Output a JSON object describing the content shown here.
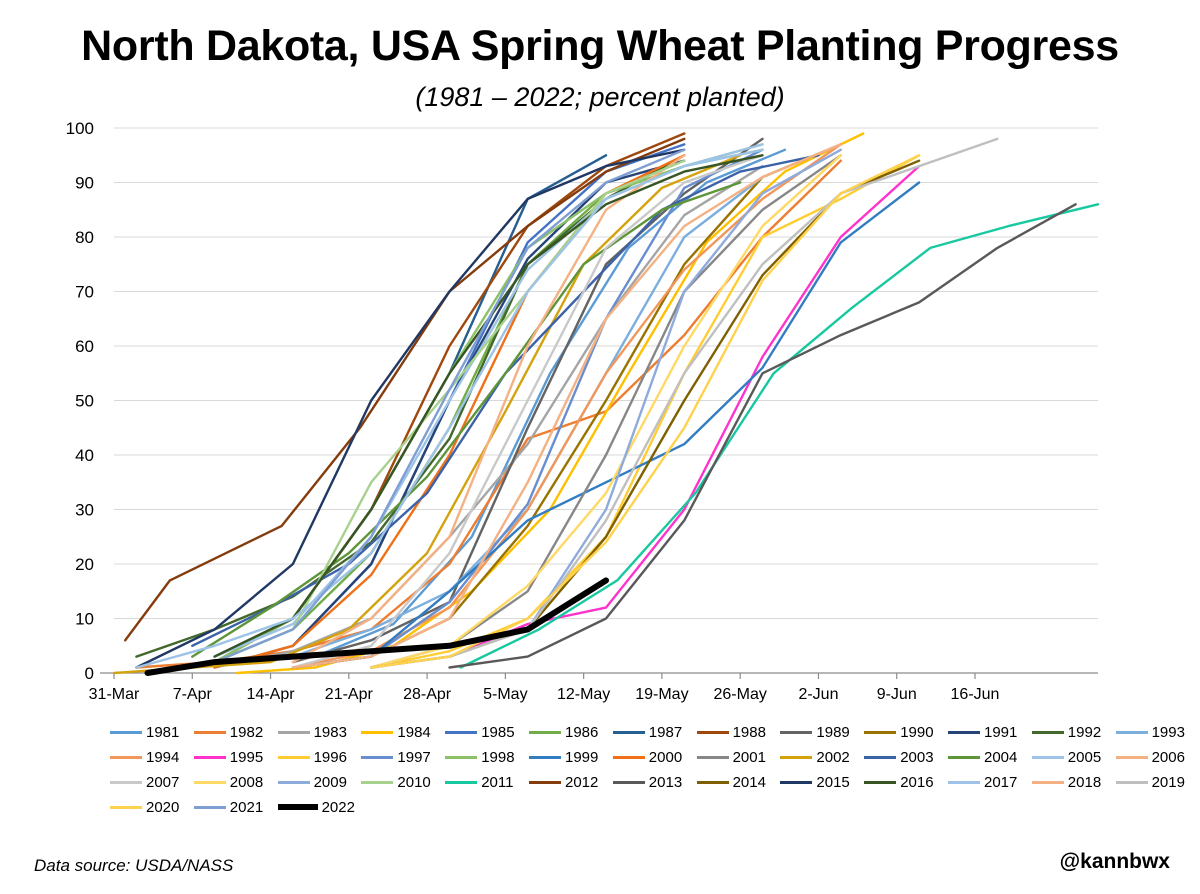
{
  "title": "North Dakota, USA Spring Wheat Planting Progress",
  "subtitle": "(1981 – 2022; percent planted)",
  "source": "Data source: USDA/NASS",
  "handle": "@kannbwx",
  "chart_data": {
    "type": "line",
    "x_tick_labels": [
      "31-Mar",
      "7-Apr",
      "14-Apr",
      "21-Apr",
      "28-Apr",
      "5-May",
      "12-May",
      "19-May",
      "26-May",
      "2-Jun",
      "9-Jun",
      "16-Jun"
    ],
    "x_unit": "day of year (31-Mar = 0)",
    "xlim": [
      0,
      88
    ],
    "ylim": [
      0,
      100
    ],
    "y_ticks": [
      0,
      10,
      20,
      30,
      40,
      50,
      60,
      70,
      80,
      90,
      100
    ],
    "grid": "horizontal",
    "legend_position": "bottom",
    "series": [
      {
        "name": "1981",
        "color": "#5b9bd5",
        "x": [
          18,
          25,
          32,
          39,
          46,
          53,
          60
        ],
        "y": [
          3,
          9,
          25,
          55,
          78,
          90,
          96
        ]
      },
      {
        "name": "1982",
        "color": "#ed7d31",
        "x": [
          2,
          9,
          16,
          23,
          30,
          37,
          44,
          51,
          58,
          65
        ],
        "y": [
          1,
          2,
          4,
          8,
          20,
          43,
          48,
          62,
          80,
          94
        ]
      },
      {
        "name": "1983",
        "color": "#a5a5a5",
        "x": [
          9,
          16,
          23,
          30,
          37,
          44,
          51,
          58
        ],
        "y": [
          1,
          4,
          10,
          25,
          42,
          65,
          84,
          93
        ]
      },
      {
        "name": "1984",
        "color": "#ffc000",
        "x": [
          11,
          18,
          25,
          32,
          39,
          46,
          53,
          60,
          67
        ],
        "y": [
          0,
          1,
          5,
          15,
          30,
          55,
          79,
          92,
          99
        ]
      },
      {
        "name": "1985",
        "color": "#4472c4",
        "x": [
          16,
          23,
          30,
          37,
          44,
          51
        ],
        "y": [
          5,
          20,
          50,
          79,
          92,
          97
        ]
      },
      {
        "name": "1986",
        "color": "#70ad47",
        "x": [
          9,
          16,
          23,
          30,
          37,
          44,
          51,
          58
        ],
        "y": [
          2,
          8,
          22,
          45,
          75,
          88,
          93,
          97
        ]
      },
      {
        "name": "1987",
        "color": "#255e91",
        "x": [
          9,
          16,
          23,
          30,
          37,
          44
        ],
        "y": [
          3,
          10,
          30,
          55,
          87,
          95
        ]
      },
      {
        "name": "1988",
        "color": "#9e480e",
        "x": [
          9,
          16,
          23,
          30,
          37,
          44,
          51
        ],
        "y": [
          2,
          10,
          30,
          60,
          82,
          93,
          99
        ]
      },
      {
        "name": "1989",
        "color": "#636363",
        "x": [
          16,
          23,
          30,
          37,
          44,
          51,
          58
        ],
        "y": [
          2,
          6,
          13,
          45,
          75,
          88,
          98
        ]
      },
      {
        "name": "1990",
        "color": "#997300",
        "x": [
          16,
          23,
          30,
          37,
          44,
          51,
          58,
          65
        ],
        "y": [
          1,
          3,
          10,
          27,
          50,
          75,
          91,
          97
        ]
      },
      {
        "name": "1991",
        "color": "#264478",
        "x": [
          9,
          16,
          23,
          30,
          37,
          44,
          51
        ],
        "y": [
          1,
          5,
          20,
          50,
          76,
          90,
          94
        ]
      },
      {
        "name": "1992",
        "color": "#43682b",
        "x": [
          2,
          9,
          16,
          23,
          30,
          37,
          44,
          51
        ],
        "y": [
          3,
          8,
          14,
          24,
          43,
          75,
          87,
          95
        ]
      },
      {
        "name": "1993",
        "color": "#7cafdd",
        "x": [
          16,
          23,
          30,
          37,
          44,
          51,
          58
        ],
        "y": [
          3,
          8,
          15,
          30,
          55,
          80,
          91
        ]
      },
      {
        "name": "1994",
        "color": "#f1975a",
        "x": [
          16,
          23,
          30,
          37,
          44,
          51,
          58,
          65
        ],
        "y": [
          1,
          4,
          12,
          30,
          55,
          74,
          87,
          97
        ]
      },
      {
        "name": "1995",
        "color": "#ff33cc",
        "x": [
          30,
          37,
          44,
          51,
          58,
          65,
          72
        ],
        "y": [
          3,
          9,
          12,
          30,
          58,
          80,
          93
        ]
      },
      {
        "name": "1996",
        "color": "#ffcd33",
        "x": [
          23,
          30,
          37,
          44,
          51,
          58,
          65,
          72
        ],
        "y": [
          1,
          4,
          10,
          25,
          55,
          80,
          87,
          95
        ]
      },
      {
        "name": "1997",
        "color": "#698ed0",
        "x": [
          16,
          23,
          30,
          37,
          44,
          51,
          58
        ],
        "y": [
          1,
          3,
          13,
          31,
          65,
          89,
          96
        ]
      },
      {
        "name": "1998",
        "color": "#8cc168",
        "x": [
          9,
          16,
          23,
          30,
          37,
          44,
          51,
          58
        ],
        "y": [
          2,
          10,
          30,
          55,
          78,
          88,
          93,
          96
        ]
      },
      {
        "name": "1999",
        "color": "#327dc2",
        "x": [
          16,
          23,
          30,
          37,
          44,
          51,
          58,
          65,
          72
        ],
        "y": [
          1,
          3,
          15,
          28,
          35,
          42,
          56,
          79,
          90
        ]
      },
      {
        "name": "2000",
        "color": "#f07018",
        "x": [
          9,
          16,
          23,
          30,
          37,
          44,
          51
        ],
        "y": [
          1,
          5,
          18,
          40,
          70,
          88,
          95
        ]
      },
      {
        "name": "2001",
        "color": "#878787",
        "x": [
          23,
          30,
          37,
          44,
          51,
          58,
          65
        ],
        "y": [
          1,
          5,
          15,
          40,
          70,
          85,
          95
        ]
      },
      {
        "name": "2002",
        "color": "#d4a20c",
        "x": [
          0,
          7,
          14,
          21,
          28,
          35,
          42,
          49,
          56
        ],
        "y": [
          0,
          1,
          2,
          8,
          22,
          48,
          75,
          89,
          95
        ]
      },
      {
        "name": "2003",
        "color": "#3c62a8",
        "x": [
          7,
          14,
          21,
          28,
          35,
          42,
          49,
          56,
          63
        ],
        "y": [
          5,
          12,
          20,
          33,
          55,
          70,
          85,
          92,
          95
        ]
      },
      {
        "name": "2004",
        "color": "#5e9538",
        "x": [
          7,
          14,
          21,
          28,
          35,
          42,
          49,
          56
        ],
        "y": [
          3,
          12,
          22,
          36,
          55,
          75,
          85,
          90
        ]
      },
      {
        "name": "2005",
        "color": "#9dc3e6",
        "x": [
          9,
          16,
          23,
          30,
          37,
          44,
          51,
          58
        ],
        "y": [
          3,
          9,
          25,
          50,
          74,
          87,
          93,
          96
        ]
      },
      {
        "name": "2006",
        "color": "#f4b183",
        "x": [
          16,
          23,
          30,
          37,
          44,
          51
        ],
        "y": [
          2,
          10,
          25,
          60,
          85,
          95
        ]
      },
      {
        "name": "2007",
        "color": "#c9c9c9",
        "x": [
          16,
          23,
          30,
          37,
          44,
          51,
          58
        ],
        "y": [
          1,
          5,
          22,
          50,
          78,
          90,
          95
        ]
      },
      {
        "name": "2008",
        "color": "#ffd966",
        "x": [
          23,
          30,
          37,
          44,
          51,
          58,
          65
        ],
        "y": [
          1,
          5,
          16,
          33,
          60,
          82,
          95
        ]
      },
      {
        "name": "2009",
        "color": "#8faadc",
        "x": [
          23,
          30,
          37,
          44,
          51,
          58,
          65
        ],
        "y": [
          1,
          3,
          8,
          30,
          70,
          88,
          96
        ]
      },
      {
        "name": "2010",
        "color": "#a9d18e",
        "x": [
          9,
          16,
          23,
          30,
          37,
          44,
          51
        ],
        "y": [
          2,
          8,
          35,
          52,
          70,
          88,
          94
        ]
      },
      {
        "name": "2011",
        "color": "#17c8a0",
        "x": [
          31,
          38,
          45,
          52,
          59,
          66,
          73,
          80,
          88
        ],
        "y": [
          1,
          8,
          17,
          33,
          55,
          67,
          78,
          82,
          86
        ]
      },
      {
        "name": "2012",
        "color": "#843c0c",
        "x": [
          1,
          5,
          15,
          22,
          30,
          37,
          44,
          51
        ],
        "y": [
          6,
          17,
          27,
          45,
          70,
          82,
          92,
          98
        ]
      },
      {
        "name": "2013",
        "color": "#595959",
        "x": [
          30,
          37,
          44,
          51,
          58,
          65,
          72,
          79,
          86
        ],
        "y": [
          1,
          3,
          10,
          28,
          55,
          62,
          68,
          78,
          86
        ]
      },
      {
        "name": "2014",
        "color": "#7f6000",
        "x": [
          23,
          30,
          37,
          44,
          51,
          58,
          65,
          72
        ],
        "y": [
          1,
          3,
          8,
          25,
          50,
          73,
          88,
          94
        ]
      },
      {
        "name": "2015",
        "color": "#203864",
        "x": [
          2,
          9,
          16,
          23,
          30,
          37,
          44,
          51
        ],
        "y": [
          1,
          8,
          20,
          50,
          70,
          87,
          93,
          96
        ]
      },
      {
        "name": "2016",
        "color": "#375623",
        "x": [
          9,
          16,
          23,
          30,
          37,
          44,
          51,
          58
        ],
        "y": [
          3,
          10,
          30,
          55,
          75,
          86,
          92,
          95
        ]
      },
      {
        "name": "2017",
        "color": "#9dc3e6",
        "x": [
          2,
          9,
          16,
          23,
          30,
          37,
          44,
          51,
          58
        ],
        "y": [
          1,
          5,
          10,
          22,
          45,
          70,
          87,
          93,
          97
        ]
      },
      {
        "name": "2018",
        "color": "#f4b183",
        "x": [
          16,
          23,
          30,
          37,
          44,
          51,
          58,
          65
        ],
        "y": [
          1,
          3,
          10,
          35,
          65,
          82,
          91,
          97
        ]
      },
      {
        "name": "2019",
        "color": "#bfbfbf",
        "x": [
          23,
          30,
          37,
          44,
          51,
          58,
          65,
          72,
          79
        ],
        "y": [
          1,
          3,
          8,
          28,
          55,
          75,
          88,
          93,
          98
        ]
      },
      {
        "name": "2020",
        "color": "#ffd24d",
        "x": [
          23,
          30,
          37,
          44,
          51,
          58,
          65,
          72
        ],
        "y": [
          1,
          3,
          10,
          24,
          45,
          72,
          88,
          95
        ]
      },
      {
        "name": "2021",
        "color": "#7f9fd4",
        "x": [
          9,
          16,
          23,
          30,
          37,
          44,
          51
        ],
        "y": [
          2,
          8,
          25,
          52,
          78,
          90,
          96
        ]
      },
      {
        "name": "2022",
        "color": "#000000",
        "x": [
          3,
          9,
          16,
          23,
          30,
          37,
          44
        ],
        "y": [
          0,
          2,
          3,
          4,
          5,
          8,
          17
        ]
      }
    ]
  }
}
